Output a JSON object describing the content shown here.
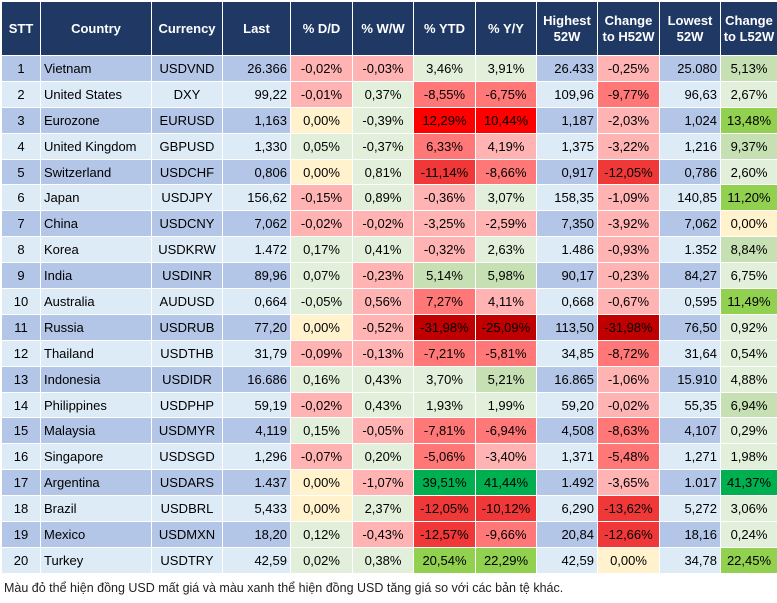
{
  "headers": [
    "STT",
    "Country",
    "Currency",
    "Last",
    "% D/D",
    "% W/W",
    "% YTD",
    "% Y/Y",
    "Highest 52W",
    "Change to H52W",
    "Lowest 52W",
    "Change to L52W"
  ],
  "palette": {
    "lr": "#FFB3B3",
    "mr": "#FF7777",
    "r": "#F03838",
    "red": "#FF0000",
    "dr": "#C00000",
    "y": "#FFF2CC",
    "lg": "#E2EFDA",
    "mg": "#C6E0B4",
    "g": "#92D050",
    "dg": "#00B050"
  },
  "rows": [
    {
      "stt": "1",
      "country": "Vietnam",
      "currency": "USDVND",
      "last": "26.366",
      "dd": "-0,02%",
      "ww": "-0,03%",
      "ytd": "3,46%",
      "yy": "3,91%",
      "h52": "26.433",
      "chh": "-0,25%",
      "l52": "25.080",
      "chl": "5,13%",
      "colors": [
        "lr",
        "lr",
        "lg",
        "lg",
        "lr",
        "mg"
      ]
    },
    {
      "stt": "2",
      "country": "United States",
      "currency": "DXY",
      "last": "99,22",
      "dd": "-0,01%",
      "ww": "0,37%",
      "ytd": "-8,55%",
      "yy": "-6,75%",
      "h52": "109,96",
      "chh": "-9,77%",
      "l52": "96,63",
      "chl": "2,67%",
      "colors": [
        "lr",
        "lg",
        "mr",
        "mr",
        "mr",
        "lg"
      ]
    },
    {
      "stt": "3",
      "country": "Eurozone",
      "currency": "EURUSD",
      "last": "1,163",
      "dd": "0,00%",
      "ww": "-0,39%",
      "ytd": "12,29%",
      "yy": "10,44%",
      "h52": "1,187",
      "chh": "-2,03%",
      "l52": "1,024",
      "chl": "13,48%",
      "colors": [
        "y",
        "lg",
        "red",
        "red",
        "lr",
        "g"
      ]
    },
    {
      "stt": "4",
      "country": "United Kingdom",
      "currency": "GBPUSD",
      "last": "1,330",
      "dd": "0,05%",
      "ww": "-0,37%",
      "ytd": "6,33%",
      "yy": "4,19%",
      "h52": "1,375",
      "chh": "-3,22%",
      "l52": "1,216",
      "chl": "9,37%",
      "colors": [
        "lg",
        "lg",
        "mr",
        "lr",
        "lr",
        "mg"
      ]
    },
    {
      "stt": "5",
      "country": "Switzerland",
      "currency": "USDCHF",
      "last": "0,806",
      "dd": "0,00%",
      "ww": "0,81%",
      "ytd": "-11,14%",
      "yy": "-8,66%",
      "h52": "0,917",
      "chh": "-12,05%",
      "l52": "0,786",
      "chl": "2,60%",
      "colors": [
        "y",
        "lg",
        "r",
        "mr",
        "r",
        "lg"
      ]
    },
    {
      "stt": "6",
      "country": "Japan",
      "currency": "USDJPY",
      "last": "156,62",
      "dd": "-0,15%",
      "ww": "0,89%",
      "ytd": "-0,36%",
      "yy": "3,07%",
      "h52": "158,35",
      "chh": "-1,09%",
      "l52": "140,85",
      "chl": "11,20%",
      "colors": [
        "lr",
        "lg",
        "lr",
        "lg",
        "lr",
        "g"
      ]
    },
    {
      "stt": "7",
      "country": "China",
      "currency": "USDCNY",
      "last": "7,062",
      "dd": "-0,02%",
      "ww": "-0,02%",
      "ytd": "-3,25%",
      "yy": "-2,59%",
      "h52": "7,350",
      "chh": "-3,92%",
      "l52": "7,062",
      "chl": "0,00%",
      "colors": [
        "lr",
        "lr",
        "lr",
        "lr",
        "lr",
        "y"
      ]
    },
    {
      "stt": "8",
      "country": "Korea",
      "currency": "USDKRW",
      "last": "1.472",
      "dd": "0,17%",
      "ww": "0,41%",
      "ytd": "-0,32%",
      "yy": "2,63%",
      "h52": "1.486",
      "chh": "-0,93%",
      "l52": "1.352",
      "chl": "8,84%",
      "colors": [
        "lg",
        "lg",
        "lr",
        "lg",
        "lr",
        "mg"
      ]
    },
    {
      "stt": "9",
      "country": "India",
      "currency": "USDINR",
      "last": "89,96",
      "dd": "0,07%",
      "ww": "-0,23%",
      "ytd": "5,14%",
      "yy": "5,98%",
      "h52": "90,17",
      "chh": "-0,23%",
      "l52": "84,27",
      "chl": "6,75%",
      "colors": [
        "lg",
        "lr",
        "mg",
        "mg",
        "lr",
        "lg"
      ]
    },
    {
      "stt": "10",
      "country": "Australia",
      "currency": "AUDUSD",
      "last": "0,664",
      "dd": "-0,05%",
      "ww": "0,56%",
      "ytd": "7,27%",
      "yy": "4,11%",
      "h52": "0,668",
      "chh": "-0,67%",
      "l52": "0,595",
      "chl": "11,49%",
      "colors": [
        "lg",
        "lr",
        "mr",
        "lr",
        "lr",
        "g"
      ]
    },
    {
      "stt": "11",
      "country": "Russia",
      "currency": "USDRUB",
      "last": "77,20",
      "dd": "0,00%",
      "ww": "-0,52%",
      "ytd": "-31,98%",
      "yy": "-25,09%",
      "h52": "113,50",
      "chh": "-31,98%",
      "l52": "76,50",
      "chl": "0,92%",
      "colors": [
        "y",
        "lr",
        "dr",
        "dr",
        "dr",
        "lg"
      ]
    },
    {
      "stt": "12",
      "country": "Thailand",
      "currency": "USDTHB",
      "last": "31,79",
      "dd": "-0,09%",
      "ww": "-0,13%",
      "ytd": "-7,21%",
      "yy": "-5,81%",
      "h52": "34,85",
      "chh": "-8,72%",
      "l52": "31,64",
      "chl": "0,54%",
      "colors": [
        "lr",
        "lr",
        "mr",
        "mr",
        "mr",
        "lg"
      ]
    },
    {
      "stt": "13",
      "country": "Indonesia",
      "currency": "USDIDR",
      "last": "16.686",
      "dd": "0,16%",
      "ww": "0,43%",
      "ytd": "3,70%",
      "yy": "5,21%",
      "h52": "16.865",
      "chh": "-1,06%",
      "l52": "15.910",
      "chl": "4,88%",
      "colors": [
        "lg",
        "lg",
        "lg",
        "mg",
        "lr",
        "lg"
      ]
    },
    {
      "stt": "14",
      "country": "Philippines",
      "currency": "USDPHP",
      "last": "59,19",
      "dd": "-0,02%",
      "ww": "0,43%",
      "ytd": "1,93%",
      "yy": "1,99%",
      "h52": "59,20",
      "chh": "-0,02%",
      "l52": "55,35",
      "chl": "6,94%",
      "colors": [
        "lr",
        "lg",
        "lg",
        "lg",
        "lr",
        "mg"
      ]
    },
    {
      "stt": "15",
      "country": "Malaysia",
      "currency": "USDMYR",
      "last": "4,119",
      "dd": "0,15%",
      "ww": "-0,05%",
      "ytd": "-7,81%",
      "yy": "-6,94%",
      "h52": "4,508",
      "chh": "-8,63%",
      "l52": "4,107",
      "chl": "0,29%",
      "colors": [
        "lg",
        "lr",
        "mr",
        "mr",
        "mr",
        "lg"
      ]
    },
    {
      "stt": "16",
      "country": "Singapore",
      "currency": "USDSGD",
      "last": "1,296",
      "dd": "-0,07%",
      "ww": "0,20%",
      "ytd": "-5,06%",
      "yy": "-3,40%",
      "h52": "1,371",
      "chh": "-5,48%",
      "l52": "1,271",
      "chl": "1,98%",
      "colors": [
        "lr",
        "lg",
        "mr",
        "lr",
        "mr",
        "lg"
      ]
    },
    {
      "stt": "17",
      "country": "Argentina",
      "currency": "USDARS",
      "last": "1.437",
      "dd": "0,00%",
      "ww": "-1,07%",
      "ytd": "39,51%",
      "yy": "41,44%",
      "h52": "1.492",
      "chh": "-3,65%",
      "l52": "1.017",
      "chl": "41,37%",
      "colors": [
        "y",
        "lr",
        "dg",
        "dg",
        "lr",
        "dg"
      ]
    },
    {
      "stt": "18",
      "country": "Brazil",
      "currency": "USDBRL",
      "last": "5,433",
      "dd": "0,00%",
      "ww": "2,37%",
      "ytd": "-12,05%",
      "yy": "-10,12%",
      "h52": "6,290",
      "chh": "-13,62%",
      "l52": "5,272",
      "chl": "3,06%",
      "colors": [
        "y",
        "lg",
        "r",
        "r",
        "r",
        "lg"
      ]
    },
    {
      "stt": "19",
      "country": "Mexico",
      "currency": "USDMXN",
      "last": "18,20",
      "dd": "0,12%",
      "ww": "-0,43%",
      "ytd": "-12,57%",
      "yy": "-9,66%",
      "h52": "20,84",
      "chh": "-12,66%",
      "l52": "18,16",
      "chl": "0,24%",
      "colors": [
        "lg",
        "lr",
        "r",
        "mr",
        "r",
        "lg"
      ]
    },
    {
      "stt": "20",
      "country": "Turkey",
      "currency": "USDTRY",
      "last": "42,59",
      "dd": "0,02%",
      "ww": "0,38%",
      "ytd": "20,54%",
      "yy": "22,29%",
      "h52": "42,59",
      "chh": "0,00%",
      "l52": "34,78",
      "chl": "22,45%",
      "colors": [
        "lg",
        "lg",
        "g",
        "g",
        "y",
        "g"
      ]
    }
  ],
  "footnote": "Màu đỏ thể hiện đồng USD mất giá và màu xanh thể hiện đồng USD tăng giá so với các bản tệ khác."
}
